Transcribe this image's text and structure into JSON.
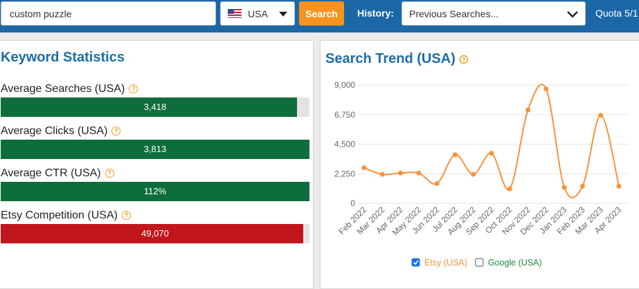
{
  "search": {
    "query": "custom puzzle",
    "country": "USA",
    "button": "Search",
    "history_label": "History:",
    "history_placeholder": "Previous Searches...",
    "quota": "Quota 5/1"
  },
  "help": "?",
  "stats": {
    "title": "Keyword Statistics",
    "items": [
      {
        "label": "Average Searches (USA)",
        "value": "3,418",
        "fill": 96,
        "color": "#0e6e3b"
      },
      {
        "label": "Average Clicks (USA)",
        "value": "3,813",
        "fill": 100,
        "color": "#0e6e3b"
      },
      {
        "label": "Average CTR (USA)",
        "value": "112%",
        "fill": 100,
        "color": "#0e6e3b"
      },
      {
        "label": "Etsy Competition (USA)",
        "value": "49,070",
        "fill": 98,
        "color": "#c1161c"
      }
    ]
  },
  "chart_data": {
    "type": "line",
    "title": "Search Trend (USA)",
    "categories": [
      "Feb 2022",
      "Mar 2022",
      "Apr 2022",
      "May 2022",
      "Jun 2022",
      "Jul 2022",
      "Aug 2022",
      "Sep 2022",
      "Oct 2022",
      "Nov 2022",
      "Dec 2022",
      "Jan 2023",
      "Feb 2023",
      "Mar 2023",
      "Apr 2023"
    ],
    "series": [
      {
        "name": "Etsy (USA)",
        "color": "#f7923a",
        "checked": true,
        "values": [
          2700,
          2200,
          2300,
          2300,
          1500,
          3700,
          2200,
          3800,
          1100,
          7100,
          8700,
          1200,
          1300,
          6700,
          1300
        ]
      }
    ],
    "hidden_series": [
      {
        "name": "Google (USA)",
        "color": "#1a8c3e",
        "checked": false
      }
    ],
    "ylim": [
      0,
      9000
    ],
    "yticks": [
      0,
      {
        "value": 2250,
        "label": "2,250"
      },
      {
        "value": 4500,
        "label": "4,500"
      },
      {
        "value": 6750,
        "label": "6,750"
      },
      {
        "value": 9000,
        "label": "9,000"
      }
    ],
    "grid": true,
    "smooth": true
  }
}
